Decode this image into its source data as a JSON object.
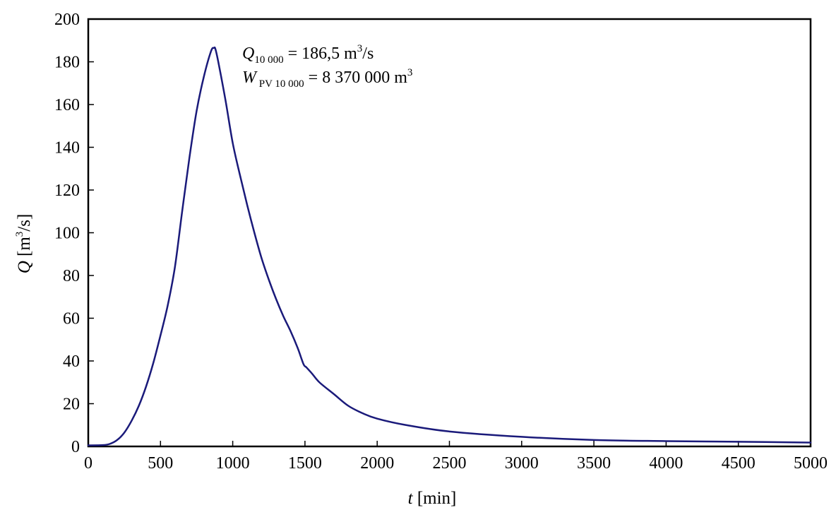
{
  "chart_data": {
    "type": "line",
    "xlabel_var": "t",
    "xlabel_unit": " [min]",
    "ylabel_var": "Q",
    "ylabel_unit_a": " [m",
    "ylabel_unit_sup": "3",
    "ylabel_unit_b": "/s]",
    "xlim": [
      0,
      5000
    ],
    "ylim": [
      0,
      200
    ],
    "xticks": [
      "0",
      "500",
      "1000",
      "1500",
      "2000",
      "2500",
      "3000",
      "3500",
      "4000",
      "4500",
      "5000"
    ],
    "yticks": [
      "0",
      "20",
      "40",
      "60",
      "80",
      "100",
      "120",
      "140",
      "160",
      "180",
      "200"
    ],
    "grid": false,
    "line_color": "#1a1a7a",
    "series": [
      {
        "x": [
          0,
          100,
          150,
          200,
          250,
          300,
          350,
          400,
          450,
          500,
          550,
          600,
          650,
          700,
          750,
          800,
          850,
          870,
          880,
          900,
          950,
          1000,
          1050,
          1100,
          1150,
          1200,
          1250,
          1300,
          1350,
          1400,
          1450,
          1490,
          1510,
          1550,
          1600,
          1700,
          1800,
          1900,
          2000,
          2200,
          2500,
          3000,
          3500,
          4000,
          4500,
          5000
        ],
        "y": [
          0.5,
          0.6,
          1.2,
          3,
          6.5,
          12,
          19,
          28,
          39,
          52,
          66,
          84,
          110,
          135,
          157,
          173,
          185,
          186.5,
          186,
          180,
          162,
          142,
          127,
          113,
          100,
          88,
          78,
          69,
          61,
          54,
          46,
          38.5,
          37,
          34,
          30,
          24.5,
          19,
          15.5,
          13,
          10,
          7,
          4.5,
          3,
          2.5,
          2.2,
          1.8
        ]
      }
    ],
    "annotations": [
      {
        "var": "Q",
        "sub": "10 000",
        "text_a": " = 186,5 m",
        "sup": "3",
        "text_b": "/s"
      },
      {
        "var": "W",
        "sub": " PV 10 000",
        "text_a": " = 8 370 000 m",
        "sup": "3",
        "text_b": ""
      }
    ]
  }
}
